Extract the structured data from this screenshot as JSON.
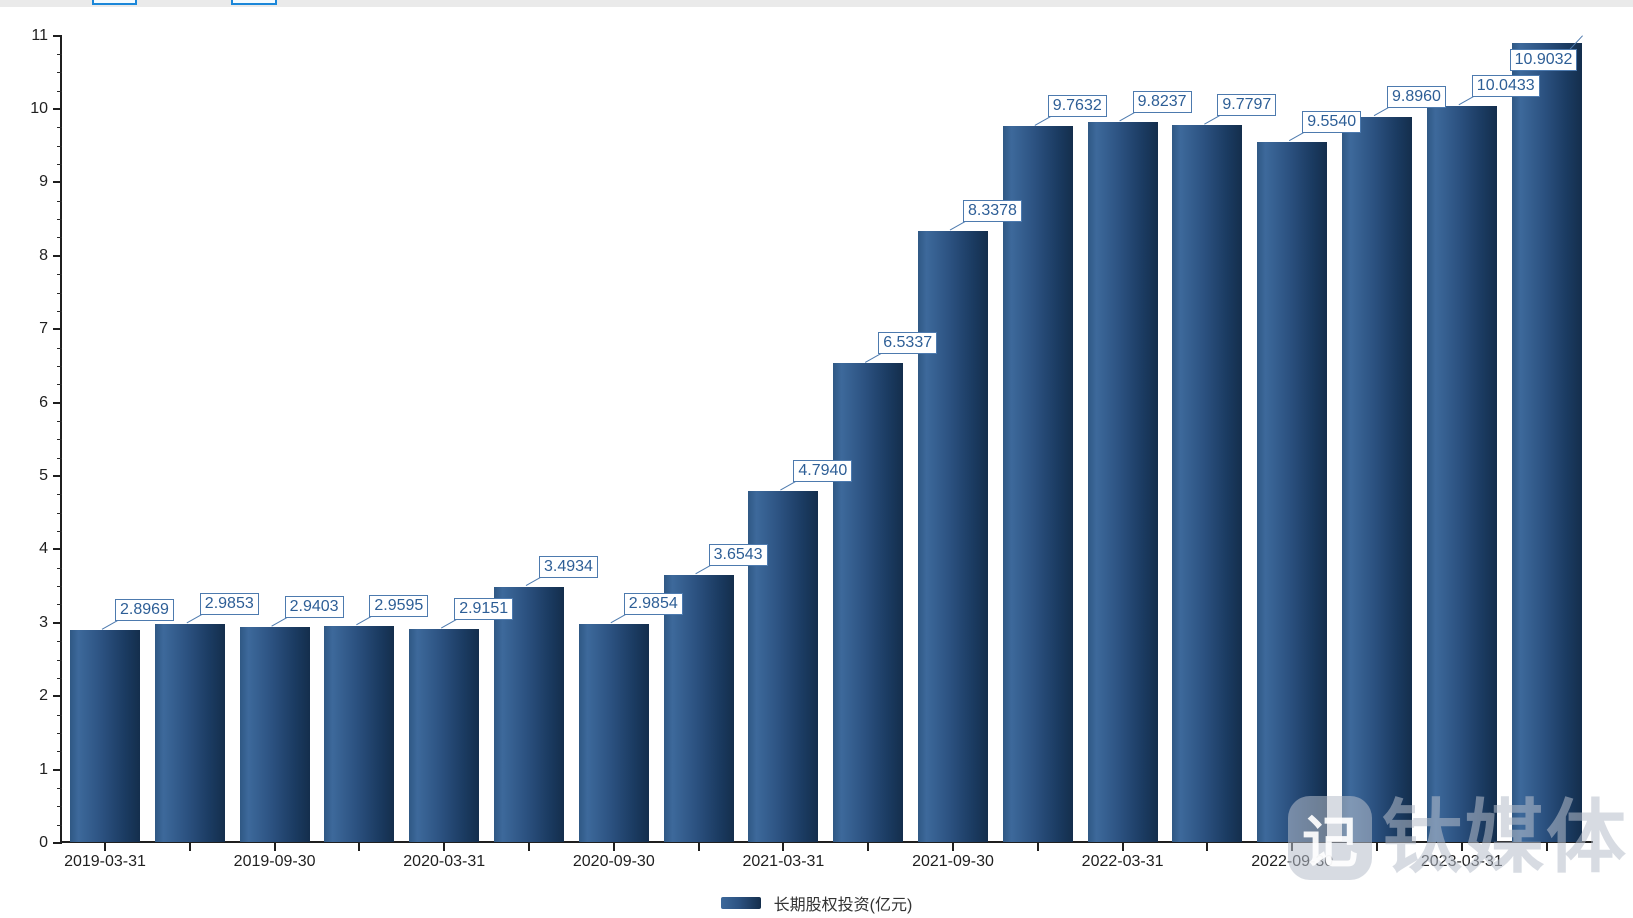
{
  "chart_data": {
    "type": "bar",
    "series": [
      {
        "name": "长期股权投资(亿元)",
        "values": [
          2.8969,
          2.9853,
          2.9403,
          2.9595,
          2.9151,
          3.4934,
          2.9854,
          3.6543,
          4.794,
          6.5337,
          8.3378,
          9.7632,
          9.8237,
          9.7797,
          9.554,
          9.896,
          10.0433,
          10.9032
        ],
        "labels": [
          "2.8969",
          "2.9853",
          "2.9403",
          "2.9595",
          "2.9151",
          "3.4934",
          "2.9854",
          "3.6543",
          "4.7940",
          "6.5337",
          "8.3378",
          "9.7632",
          "9.8237",
          "9.7797",
          "9.5540",
          "9.8960",
          "10.0433",
          "10.9032"
        ]
      }
    ],
    "x_axis": {
      "tick_labels": [
        "2019-03-31",
        "2019-09-30",
        "2020-03-31",
        "2020-09-30",
        "2021-03-31",
        "2021-09-30",
        "2022-03-31",
        "2022-09-30",
        "2023-03-31"
      ],
      "labeled_bar_indices": [
        0,
        2,
        4,
        6,
        8,
        10,
        12,
        14,
        16
      ]
    },
    "y_axis": {
      "min": 0,
      "max": 11,
      "major_step": 1,
      "minor_step": 0.25,
      "tick_labels": [
        "0",
        "1",
        "2",
        "3",
        "4",
        "5",
        "6",
        "7",
        "8",
        "9",
        "10",
        "11"
      ]
    },
    "legend": {
      "label": "长期股权投资(亿元)",
      "position": "bottom-center"
    },
    "grid": false,
    "data_labels_visible": true
  },
  "colors": {
    "bar_gradient_start": "#3d699b",
    "bar_gradient_end": "#142e4c",
    "data_label_text": "#2d5e96",
    "data_label_border": "#4d7aae",
    "axis": "#1f1f1f",
    "toolbar_tab_border": "#1b87d9"
  },
  "watermark": {
    "text": "钛媒体"
  }
}
